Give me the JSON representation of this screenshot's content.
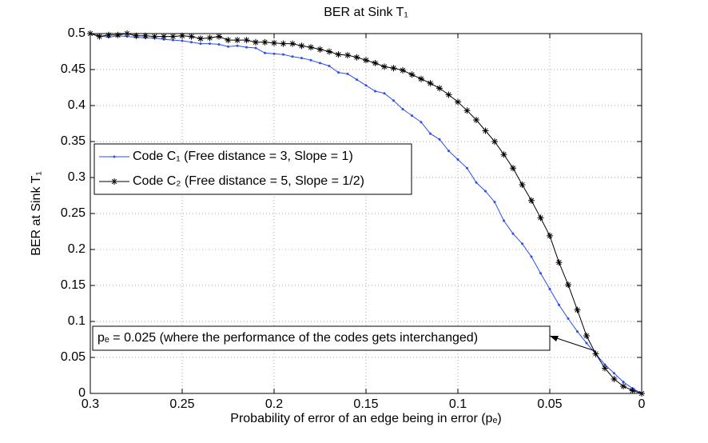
{
  "chart_data": {
    "type": "line",
    "title": "BER at Sink T₁",
    "xlabel": "Probability of error of an edge being in error (pₑ)",
    "ylabel": "BER at Sink T₁",
    "annotation": "pₑ = 0.025 (where the performance of the codes gets interchanged)",
    "x": [
      0.3,
      0.295,
      0.29,
      0.285,
      0.28,
      0.275,
      0.27,
      0.265,
      0.26,
      0.255,
      0.25,
      0.245,
      0.24,
      0.235,
      0.23,
      0.225,
      0.22,
      0.215,
      0.21,
      0.205,
      0.2,
      0.195,
      0.19,
      0.185,
      0.18,
      0.175,
      0.17,
      0.165,
      0.16,
      0.155,
      0.15,
      0.145,
      0.14,
      0.135,
      0.13,
      0.125,
      0.12,
      0.115,
      0.11,
      0.105,
      0.1,
      0.095,
      0.09,
      0.085,
      0.08,
      0.075,
      0.07,
      0.065,
      0.06,
      0.055,
      0.05,
      0.045,
      0.04,
      0.035,
      0.03,
      0.025,
      0.02,
      0.015,
      0.01,
      0.005,
      0
    ],
    "series": [
      {
        "name": "Code C₁ (Free distance = 3, Slope = 1)",
        "color": "#2a4ef0",
        "marker": "dot",
        "values": [
          0.5,
          0.497,
          0.495,
          0.497,
          0.496,
          0.495,
          0.494,
          0.494,
          0.492,
          0.491,
          0.49,
          0.488,
          0.486,
          0.486,
          0.485,
          0.482,
          0.483,
          0.481,
          0.48,
          0.473,
          0.472,
          0.471,
          0.468,
          0.466,
          0.463,
          0.459,
          0.455,
          0.446,
          0.444,
          0.436,
          0.428,
          0.42,
          0.417,
          0.407,
          0.395,
          0.386,
          0.377,
          0.361,
          0.353,
          0.337,
          0.325,
          0.313,
          0.293,
          0.281,
          0.266,
          0.24,
          0.222,
          0.208,
          0.19,
          0.167,
          0.145,
          0.123,
          0.104,
          0.086,
          0.07,
          0.055,
          0.04,
          0.028,
          0.016,
          0.007,
          0
        ]
      },
      {
        "name": "Code C₂ (Free distance = 5, Slope = 1/2)",
        "color": "#000000",
        "marker": "asterisk",
        "values": [
          0.5,
          0.496,
          0.498,
          0.498,
          0.5,
          0.497,
          0.497,
          0.496,
          0.496,
          0.496,
          0.497,
          0.496,
          0.493,
          0.494,
          0.496,
          0.491,
          0.491,
          0.491,
          0.488,
          0.488,
          0.487,
          0.486,
          0.486,
          0.483,
          0.481,
          0.478,
          0.475,
          0.471,
          0.47,
          0.467,
          0.463,
          0.459,
          0.454,
          0.452,
          0.449,
          0.443,
          0.437,
          0.431,
          0.424,
          0.415,
          0.405,
          0.393,
          0.38,
          0.365,
          0.35,
          0.332,
          0.313,
          0.29,
          0.268,
          0.244,
          0.219,
          0.182,
          0.151,
          0.116,
          0.08,
          0.055,
          0.035,
          0.02,
          0.01,
          0.004,
          0
        ]
      }
    ],
    "xlim": [
      0.3,
      0
    ],
    "xticks": [
      0.3,
      0.25,
      0.2,
      0.15,
      0.1,
      0.05,
      0
    ],
    "ylim": [
      0,
      0.5
    ],
    "yticks": [
      0,
      0.05,
      0.1,
      0.15,
      0.2,
      0.25,
      0.3,
      0.35,
      0.4,
      0.45,
      0.5
    ],
    "grid": true
  }
}
